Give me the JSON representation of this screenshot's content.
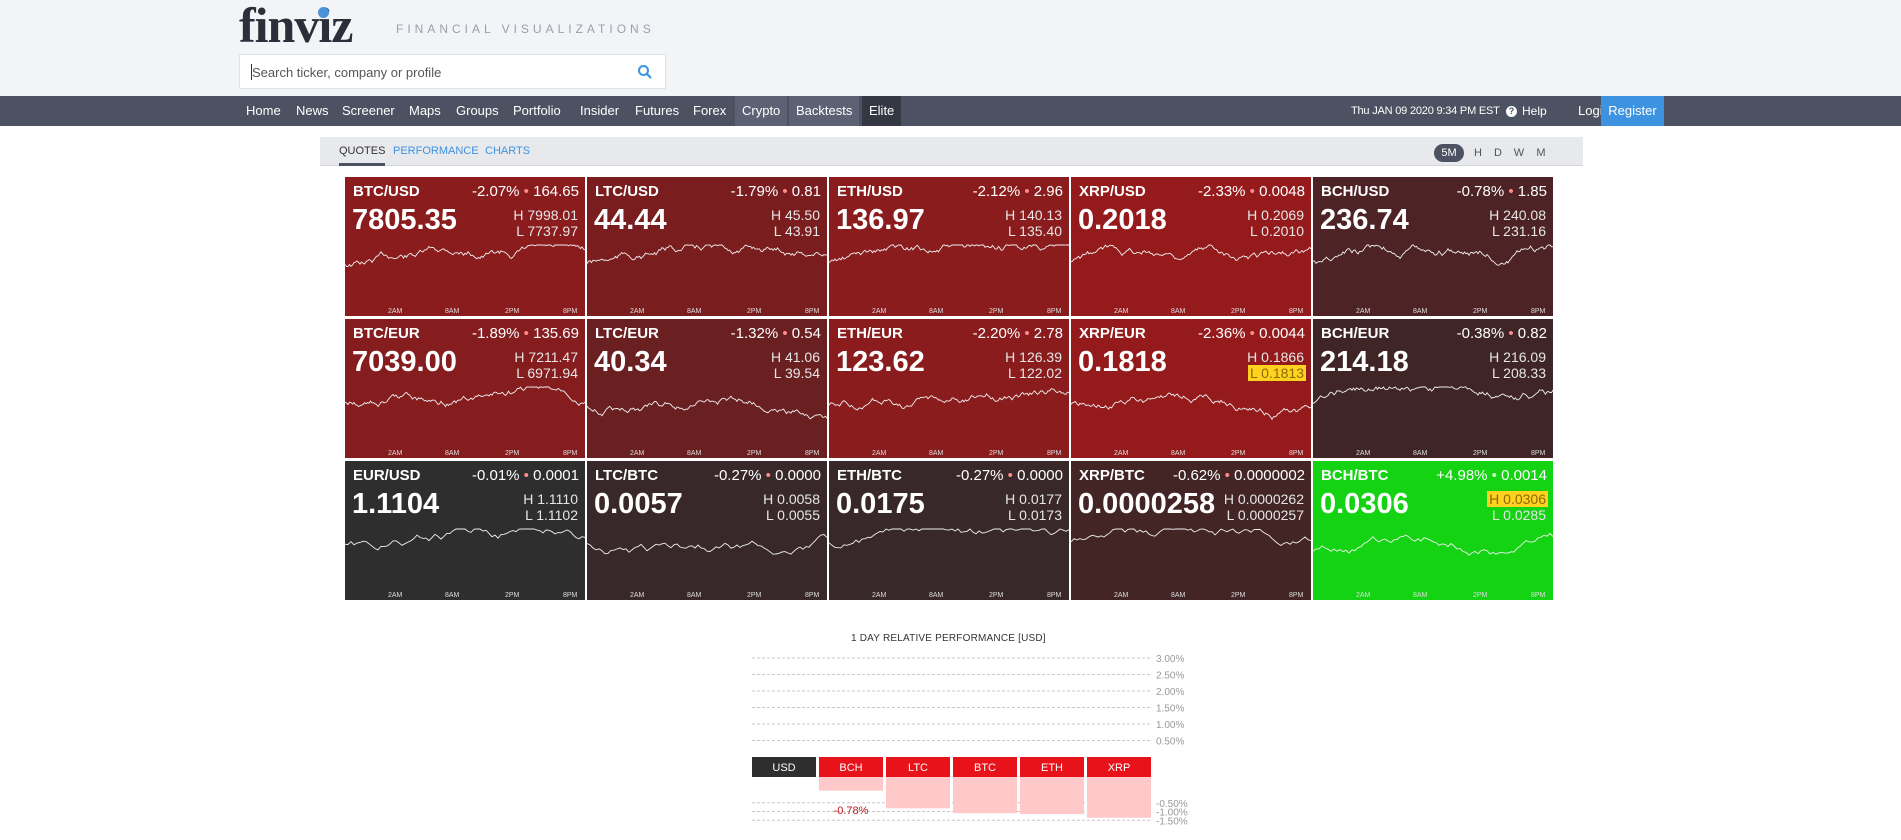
{
  "header": {
    "logo": "finviz",
    "tagline": "FINANCIAL VISUALIZATIONS",
    "search_placeholder": "Search ticker, company or profile"
  },
  "nav": {
    "items": [
      "Home",
      "News",
      "Screener",
      "Maps",
      "Groups",
      "Portfolio",
      "Insider",
      "Futures",
      "Forex",
      "Crypto",
      "Backtests",
      "Elite"
    ],
    "active": "Crypto",
    "datetime": "Thu JAN 09 2020 9:34 PM EST",
    "help": "Help",
    "login": "Login",
    "register": "Register"
  },
  "subtabs": {
    "quotes": "QUOTES",
    "performance": "PERFORMANCE",
    "charts": "CHARTS"
  },
  "timeframes": [
    "5M",
    "H",
    "D",
    "W",
    "M"
  ],
  "timeframe_selected": "5M",
  "tick_labels": [
    "2AM",
    "8AM",
    "2PM",
    "8PM"
  ],
  "colors": {
    "strong_red": "#8b1a1a",
    "red": "#6e1f1f",
    "dark_red": "#4a2424",
    "neutral": "#2e2e2e",
    "green": "#1bd81b"
  },
  "tiles": [
    {
      "symbol": "BTC/USD",
      "change": "-2.07%",
      "abs": "164.65",
      "price": "7805.35",
      "high": "H 7998.01",
      "low": "L 7737.97",
      "color": "#8a1c1e"
    },
    {
      "symbol": "LTC/USD",
      "change": "-1.79%",
      "abs": "0.81",
      "price": "44.44",
      "high": "H 45.50",
      "low": "L 43.91",
      "color": "#7a1d1f"
    },
    {
      "symbol": "ETH/USD",
      "change": "-2.12%",
      "abs": "2.96",
      "price": "136.97",
      "high": "H 140.13",
      "low": "L 135.40",
      "color": "#8a1c1e"
    },
    {
      "symbol": "XRP/USD",
      "change": "-2.33%",
      "abs": "0.0048",
      "price": "0.2018",
      "high": "H 0.2069",
      "low": "L 0.2010",
      "color": "#951a1c"
    },
    {
      "symbol": "BCH/USD",
      "change": "-0.78%",
      "abs": "1.85",
      "price": "236.74",
      "high": "H 240.08",
      "low": "L 231.16",
      "color": "#4d2325"
    },
    {
      "symbol": "BTC/EUR",
      "change": "-1.89%",
      "abs": "135.69",
      "price": "7039.00",
      "high": "H 7211.47",
      "low": "L 6971.94",
      "color": "#851c1e"
    },
    {
      "symbol": "LTC/EUR",
      "change": "-1.32%",
      "abs": "0.54",
      "price": "40.34",
      "high": "H 41.06",
      "low": "L 39.54",
      "color": "#6a1f21"
    },
    {
      "symbol": "ETH/EUR",
      "change": "-2.20%",
      "abs": "2.78",
      "price": "123.62",
      "high": "H 126.39",
      "low": "L 122.02",
      "color": "#8a1c1e"
    },
    {
      "symbol": "XRP/EUR",
      "change": "-2.36%",
      "abs": "0.0044",
      "price": "0.1818",
      "high": "H 0.1866",
      "low": "L 0.1813",
      "color": "#951a1c",
      "low_highlight": true
    },
    {
      "symbol": "BCH/EUR",
      "change": "-0.38%",
      "abs": "0.82",
      "price": "214.18",
      "high": "H 216.09",
      "low": "L 208.33",
      "color": "#3f2526"
    },
    {
      "symbol": "EUR/USD",
      "change": "-0.01%",
      "abs": "0.0001",
      "price": "1.1104",
      "high": "H 1.1110",
      "low": "L 1.1102",
      "color": "#2e2e2f"
    },
    {
      "symbol": "LTC/BTC",
      "change": "-0.27%",
      "abs": "0.0000",
      "price": "0.0057",
      "high": "H 0.0058",
      "low": "L 0.0055",
      "color": "#382829"
    },
    {
      "symbol": "ETH/BTC",
      "change": "-0.27%",
      "abs": "0.0000",
      "price": "0.0175",
      "high": "H 0.0177",
      "low": "L 0.0173",
      "color": "#382829"
    },
    {
      "symbol": "XRP/BTC",
      "change": "-0.62%",
      "abs": "0.0000002",
      "price": "0.0000258",
      "high": "H 0.0000262",
      "low": "L 0.0000257",
      "color": "#432526"
    },
    {
      "symbol": "BCH/BTC",
      "change": "+4.98%",
      "abs": "0.0014",
      "price": "0.0306",
      "high": "H 0.0306",
      "low": "L 0.0285",
      "color": "#13d313",
      "high_highlight": true
    }
  ],
  "chart_data": {
    "type": "bar",
    "title": "1 DAY RELATIVE PERFORMANCE  [USD]",
    "categories": [
      "USD",
      "BCH",
      "LTC",
      "BTC",
      "ETH",
      "XRP"
    ],
    "values": [
      0.0,
      -0.78,
      -1.79,
      -2.07,
      -2.12,
      -2.33
    ],
    "data_labels": {
      "BCH": "-0.78%"
    },
    "y_ticks_positive": [
      "3.00%",
      "2.50%",
      "2.00%",
      "1.50%",
      "1.00%",
      "0.50%"
    ],
    "y_ticks_negative": [
      "-0.50%",
      "-1.00%",
      "-1.50%"
    ],
    "grid": true
  }
}
